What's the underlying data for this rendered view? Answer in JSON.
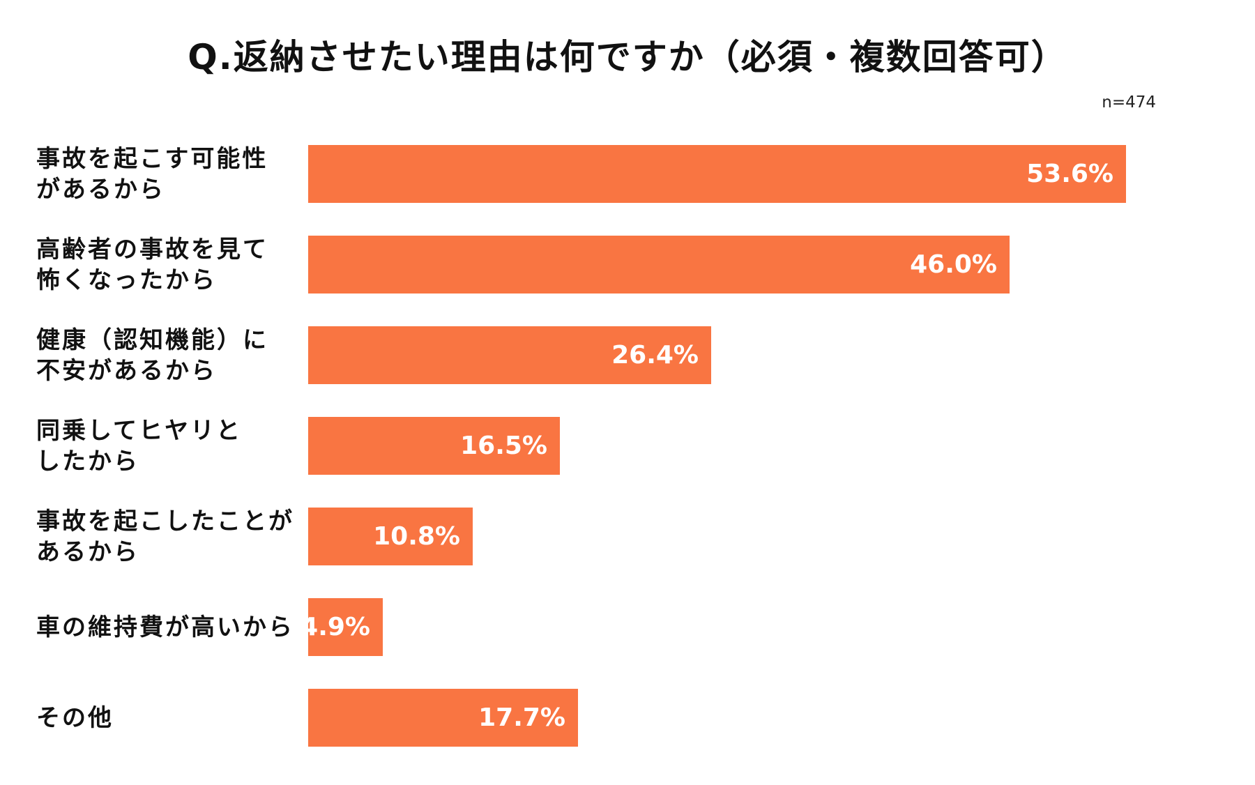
{
  "chart_data": {
    "type": "bar",
    "orientation": "horizontal",
    "title": "Q.返納させたい理由は何ですか（必須・複数回答可）",
    "sample_size": "n=474",
    "categories": [
      "事故を起こす可能性\nがあるから",
      "高齢者の事故を見て\n怖くなったから",
      "健康（認知機能）に\n不安があるから",
      "同乗してヒヤリと\nしたから",
      "事故を起こしたことが\nあるから",
      "車の維持費が高いから",
      "その他"
    ],
    "values": [
      53.6,
      46.0,
      26.4,
      16.5,
      10.8,
      4.9,
      17.7
    ],
    "value_labels": [
      "53.6%",
      "46.0%",
      "26.4%",
      "16.5%",
      "10.8%",
      "4.9%",
      "17.7%"
    ],
    "unit": "%",
    "xlim": [
      0,
      57.5
    ],
    "grid": false,
    "legend": "none",
    "bar_color": "#F97542"
  }
}
